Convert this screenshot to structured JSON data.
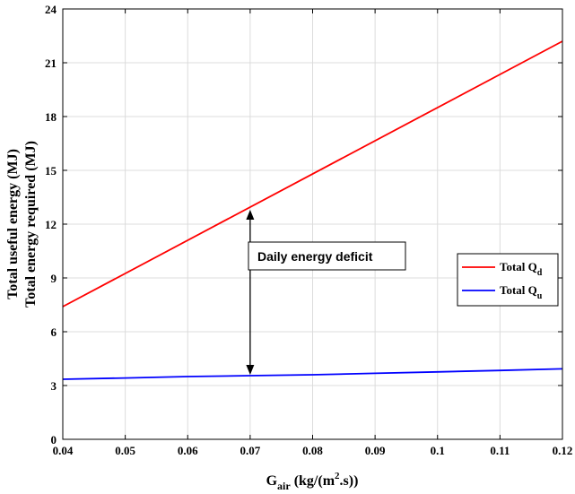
{
  "chart_data": {
    "type": "line",
    "xlabel": {
      "main": "G",
      "sub": "air",
      "rest1": " (kg/(m",
      "sup": "2",
      "rest2": ".s))"
    },
    "ylabel": [
      "Total useful energy (MJ)",
      "Total energy required (MJ)"
    ],
    "xlim": [
      0.04,
      0.12
    ],
    "ylim": [
      0,
      24
    ],
    "xticks": [
      0.04,
      0.05,
      0.06,
      0.07,
      0.08,
      0.09,
      0.1,
      0.11,
      0.12
    ],
    "xtick_labels": [
      "0.04",
      "0.05",
      "0.06",
      "0.07",
      "0.08",
      "0.09",
      "0.1",
      "0.11",
      "0.12"
    ],
    "yticks": [
      0,
      3,
      6,
      9,
      12,
      15,
      18,
      21,
      24
    ],
    "ytick_labels": [
      "0",
      "3",
      "6",
      "9",
      "12",
      "15",
      "18",
      "21",
      "24"
    ],
    "grid": true,
    "legend_position": "right",
    "series": [
      {
        "name": {
          "main": "Total Q",
          "sub": "d"
        },
        "color": "#ff0000",
        "x": [
          0.04,
          0.12
        ],
        "y": [
          7.4,
          22.2
        ]
      },
      {
        "name": {
          "main": "Total Q",
          "sub": "u"
        },
        "color": "#0000ff",
        "x": [
          0.04,
          0.05,
          0.06,
          0.07,
          0.08,
          0.09,
          0.1,
          0.11,
          0.12
        ],
        "y": [
          3.35,
          3.42,
          3.5,
          3.55,
          3.6,
          3.68,
          3.76,
          3.84,
          3.93
        ]
      }
    ],
    "annotation": {
      "text": "Daily energy deficit",
      "arrow_x": 0.07,
      "arrow_y_top": 12.8,
      "arrow_y_bottom": 3.6
    }
  }
}
